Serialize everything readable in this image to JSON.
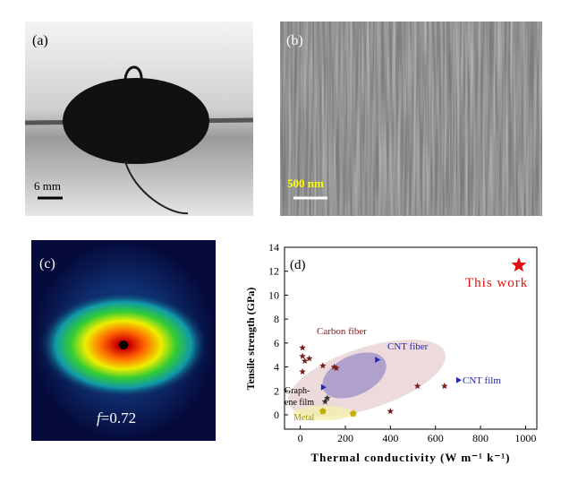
{
  "panels": {
    "a": {
      "label": "(a)",
      "scale": "6 mm"
    },
    "b": {
      "label": "(b)",
      "scale": "500 nm"
    },
    "c": {
      "label": "(c)",
      "symbol": "f",
      "value_text": "=0.72"
    }
  },
  "chart_data": {
    "type": "scatter",
    "label": "(d)",
    "x_label": "Thermal conductivity (W m⁻¹ k⁻¹)",
    "y_label": "Tensile strength (GPa)",
    "xlim": [
      -70,
      1050
    ],
    "xticks": [
      0,
      200,
      400,
      600,
      800,
      1000
    ],
    "ylim": [
      -1.2,
      14
    ],
    "yticks": [
      0,
      2,
      4,
      6,
      8,
      10,
      12,
      14
    ],
    "series": [
      {
        "marker": "star",
        "color": "#7a1c1c",
        "x": [
          10,
          10,
          20,
          40,
          10,
          100,
          150,
          160,
          520,
          640,
          400
        ],
        "values": [
          5.6,
          4.9,
          4.5,
          4.7,
          3.6,
          4.1,
          4.0,
          3.9,
          2.4,
          2.4,
          0.3
        ]
      },
      {
        "marker": "star",
        "color": "#333333",
        "x": [
          110,
          120
        ],
        "values": [
          1.1,
          1.4
        ]
      },
      {
        "marker": "triangle",
        "color": "#2424b0",
        "x": [
          340,
          100,
          700
        ],
        "values": [
          4.6,
          2.3,
          2.9
        ]
      },
      {
        "marker": "pentagon",
        "color": "#c2b000",
        "x": [
          100,
          235
        ],
        "values": [
          0.3,
          0.1
        ]
      },
      {
        "marker": "bigstar",
        "color": "#e01010",
        "x": [
          970
        ],
        "values": [
          12.5
        ]
      }
    ],
    "annotations": [
      "Carbon fiber",
      "CNT fiber",
      "CNT film",
      "Graph-",
      "ene film",
      "Metal",
      "This work"
    ]
  }
}
